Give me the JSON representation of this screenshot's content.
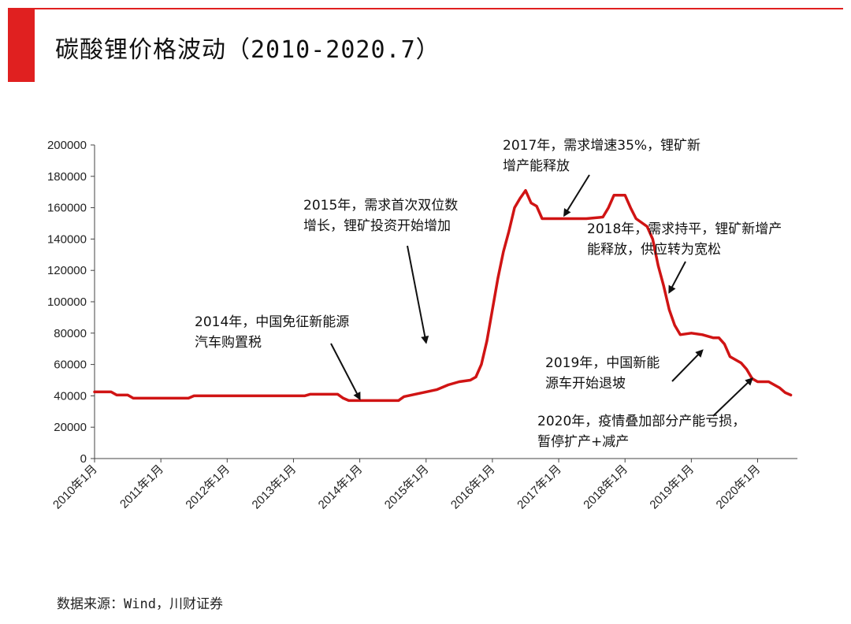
{
  "header": {
    "title": "碳酸锂价格波动（2010-2020.7）"
  },
  "source": "数据来源：Wind，川财证券",
  "colors": {
    "accent": "#e02020",
    "line": "#d01414",
    "axis": "#444444",
    "text": "#111111"
  },
  "chart_data": {
    "type": "line",
    "title": "碳酸锂价格波动（2010-2020.7）",
    "xlabel": "",
    "ylabel": "",
    "ylim": [
      0,
      200000
    ],
    "yticks": [
      0,
      20000,
      40000,
      60000,
      80000,
      100000,
      120000,
      140000,
      160000,
      180000,
      200000
    ],
    "grid": false,
    "legend": "none",
    "x_tick_labels": [
      "2010年1月",
      "2011年1月",
      "2012年1月",
      "2013年1月",
      "2014年1月",
      "2015年1月",
      "2016年1月",
      "2017年1月",
      "2018年1月",
      "2019年1月",
      "2020年1月"
    ],
    "series": [
      {
        "color": "#d01414",
        "points": [
          [
            "2010-01",
            42500
          ],
          [
            "2010-04",
            42500
          ],
          [
            "2010-05",
            40500
          ],
          [
            "2010-07",
            40500
          ],
          [
            "2010-08",
            38500
          ],
          [
            "2011-01",
            38500
          ],
          [
            "2011-06",
            38500
          ],
          [
            "2011-07",
            40000
          ],
          [
            "2012-01",
            40000
          ],
          [
            "2012-06",
            40000
          ],
          [
            "2013-01",
            40000
          ],
          [
            "2013-03",
            40000
          ],
          [
            "2013-04",
            41000
          ],
          [
            "2013-09",
            41000
          ],
          [
            "2013-10",
            38500
          ],
          [
            "2013-11",
            37000
          ],
          [
            "2014-01",
            37000
          ],
          [
            "2014-06",
            37000
          ],
          [
            "2014-08",
            37000
          ],
          [
            "2014-09",
            39500
          ],
          [
            "2014-11",
            41000
          ],
          [
            "2015-01",
            42500
          ],
          [
            "2015-03",
            44000
          ],
          [
            "2015-05",
            47000
          ],
          [
            "2015-07",
            49000
          ],
          [
            "2015-09",
            50000
          ],
          [
            "2015-10",
            52000
          ],
          [
            "2015-11",
            60000
          ],
          [
            "2015-12",
            75000
          ],
          [
            "2016-01",
            95000
          ],
          [
            "2016-02",
            115000
          ],
          [
            "2016-03",
            132000
          ],
          [
            "2016-04",
            145000
          ],
          [
            "2016-05",
            160000
          ],
          [
            "2016-06",
            166000
          ],
          [
            "2016-07",
            171000
          ],
          [
            "2016-08",
            163000
          ],
          [
            "2016-09",
            161000
          ],
          [
            "2016-10",
            153000
          ],
          [
            "2017-01",
            153000
          ],
          [
            "2017-06",
            153000
          ],
          [
            "2017-09",
            154000
          ],
          [
            "2017-10",
            160000
          ],
          [
            "2017-11",
            168000
          ],
          [
            "2018-01",
            168000
          ],
          [
            "2018-02",
            160000
          ],
          [
            "2018-03",
            153000
          ],
          [
            "2018-05",
            148000
          ],
          [
            "2018-06",
            140000
          ],
          [
            "2018-07",
            123000
          ],
          [
            "2018-08",
            110000
          ],
          [
            "2018-09",
            95000
          ],
          [
            "2018-10",
            85000
          ],
          [
            "2018-11",
            79000
          ],
          [
            "2019-01",
            80000
          ],
          [
            "2019-03",
            79000
          ],
          [
            "2019-05",
            77000
          ],
          [
            "2019-06",
            77000
          ],
          [
            "2019-07",
            73000
          ],
          [
            "2019-08",
            65000
          ],
          [
            "2019-10",
            61000
          ],
          [
            "2019-11",
            57000
          ],
          [
            "2019-12",
            51000
          ],
          [
            "2020-01",
            49000
          ],
          [
            "2020-03",
            49000
          ],
          [
            "2020-05",
            45000
          ],
          [
            "2020-06",
            42000
          ],
          [
            "2020-07",
            40500
          ]
        ]
      }
    ],
    "annotations": [
      {
        "lines": [
          "2014年，中国免征新能源",
          "汽车购置税"
        ],
        "points_to": [
          "2014-01",
          38000
        ]
      },
      {
        "lines": [
          "2015年，需求首次双位数",
          "增长，锂矿投资开始增加"
        ],
        "points_to": [
          "2015-01",
          74000
        ]
      },
      {
        "lines": [
          "2017年，需求增速35%，锂矿新",
          "增产能释放"
        ],
        "points_to": [
          "2017-02",
          155000
        ]
      },
      {
        "lines": [
          "2018年，需求持平，锂矿新增产",
          "能释放，供应转为宽松"
        ],
        "points_to": [
          "2018-09",
          106000
        ]
      },
      {
        "lines": [
          "2019年，中国新能",
          "源车开始退坡"
        ],
        "points_to": [
          "2019-03",
          69000
        ]
      },
      {
        "lines": [
          "2020年，疫情叠加部分产能亏损，",
          "暂停扩产+减产"
        ],
        "points_to": [
          "2019-12",
          51000
        ]
      }
    ]
  }
}
